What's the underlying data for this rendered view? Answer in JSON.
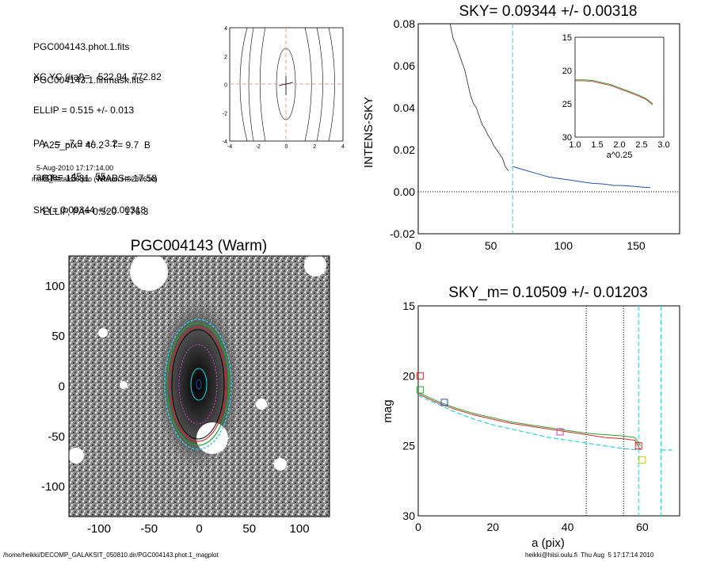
{
  "info": {
    "lines_a": [
      "PGC004143.phot.1.fits",
      "PGC004143.1.finmask.fits"
    ],
    "lines_b": [
      "XC,YC (iraf)=   522.94, 772.82",
      "ELLIP = 0.515 +/- 0.013",
      "PA    =  -7.9 +/-   3.2",
      "range=   45.-   55.",
      "SKY= 0.09344 +/- 0.00318"
    ],
    "lines_c": [
      "A25_pix= 46.2   T= 9.7  B",
      "BT=  15.31   MABS=-17.58",
      "ELLIP, PA= 0.520   176.3"
    ],
    "date_line": "5-Aug-2010 17:17:14.00",
    "program_line": "make_datalist0.pro (version HS230610)"
  },
  "footer": {
    "left": "/home/heikki/DECOMP_GALAKSIT_050810.dir/PGC004143.phot.1_magplot",
    "right": "heikki@hiisi.oulu.fi  Thu Aug  5 17:17:14 2010"
  },
  "colors": {
    "red": "#d62728",
    "green": "#2ca02c",
    "cyan": "#22d3e6",
    "blue": "#1f4fb5",
    "magenta": "#d23bd2",
    "pink": "#ef9a9a"
  },
  "chart_data": [
    {
      "id": "contour",
      "type": "contour",
      "xlim": [
        -4,
        4
      ],
      "ylim": [
        -4,
        4
      ],
      "x_ticks": [
        "-4",
        "-2",
        "0",
        "2",
        "4"
      ],
      "y_ticks": [
        "4",
        "2",
        "0",
        "-2",
        "-4"
      ]
    },
    {
      "id": "intens_sky",
      "type": "line",
      "title": "SKY= 0.09344 +/- 0.00318",
      "ylabel": "INTENS-SKY",
      "xlim": [
        0,
        180
      ],
      "ylim": [
        -0.02,
        0.08
      ],
      "x_ticks": [
        "0",
        "50",
        "100",
        "150"
      ],
      "y_ticks": [
        "0.08",
        "0.06",
        "0.04",
        "0.02",
        "0.00",
        "-0.02"
      ],
      "vline_x": 65,
      "inner": [
        [
          22,
          0.08
        ],
        [
          24,
          0.073
        ],
        [
          26,
          0.07
        ],
        [
          28,
          0.066
        ],
        [
          30,
          0.062
        ],
        [
          32,
          0.058
        ],
        [
          34,
          0.052
        ],
        [
          36,
          0.046
        ],
        [
          38,
          0.042
        ],
        [
          40,
          0.04
        ],
        [
          42,
          0.036
        ],
        [
          44,
          0.032
        ],
        [
          46,
          0.03
        ],
        [
          48,
          0.027
        ],
        [
          50,
          0.025
        ],
        [
          52,
          0.022
        ],
        [
          54,
          0.02
        ],
        [
          56,
          0.018
        ],
        [
          58,
          0.016
        ],
        [
          60,
          0.012
        ],
        [
          62,
          0.01
        ]
      ],
      "outer": [
        [
          65,
          0.012
        ],
        [
          70,
          0.011
        ],
        [
          75,
          0.01
        ],
        [
          80,
          0.009
        ],
        [
          85,
          0.008
        ],
        [
          90,
          0.007
        ],
        [
          95,
          0.0065
        ],
        [
          100,
          0.006
        ],
        [
          105,
          0.0055
        ],
        [
          110,
          0.005
        ],
        [
          115,
          0.0045
        ],
        [
          120,
          0.004
        ],
        [
          125,
          0.0038
        ],
        [
          130,
          0.0035
        ],
        [
          135,
          0.003
        ],
        [
          140,
          0.003
        ],
        [
          145,
          0.0028
        ],
        [
          150,
          0.0025
        ],
        [
          155,
          0.0022
        ],
        [
          160,
          0.002
        ]
      ],
      "inset": {
        "xlabel": "a^0.25",
        "xlim": [
          1.0,
          3.0
        ],
        "ylim": [
          15,
          30
        ],
        "x_ticks": [
          "1.0",
          "1.5",
          "2.0",
          "2.5",
          "3.0"
        ],
        "y_ticks": [
          "15",
          "20",
          "25",
          "30"
        ],
        "profile": [
          [
            1.0,
            21.4
          ],
          [
            1.2,
            21.4
          ],
          [
            1.4,
            21.5
          ],
          [
            1.6,
            21.8
          ],
          [
            1.8,
            22.1
          ],
          [
            2.0,
            22.6
          ],
          [
            2.2,
            23.1
          ],
          [
            2.4,
            23.6
          ],
          [
            2.6,
            24.2
          ],
          [
            2.75,
            25.0
          ]
        ]
      }
    },
    {
      "id": "image",
      "type": "image",
      "title": "PGC004143 (Warm)",
      "xlim": [
        -130,
        130
      ],
      "ylim": [
        -130,
        130
      ],
      "x_ticks": [
        "-100",
        "-50",
        "0",
        "50",
        "100"
      ],
      "y_ticks": [
        "100",
        "50",
        "0",
        "-50",
        "-100"
      ]
    },
    {
      "id": "mag_profile",
      "type": "line",
      "title": "SKY_m=  0.10509 +/- 0.01203",
      "xlabel": "a (pix)",
      "ylabel": "mag",
      "xlim": [
        0,
        70
      ],
      "ylim": [
        15,
        30
      ],
      "x_ticks": [
        "0",
        "20",
        "40",
        "60"
      ],
      "y_ticks": [
        "15",
        "20",
        "25",
        "30"
      ],
      "dotted_x": [
        45,
        55
      ],
      "dashed_x": [
        59,
        65
      ],
      "sky_level": 25.3,
      "series": [
        {
          "color": "#d62728",
          "values": [
            [
              0,
              21.3
            ],
            [
              5,
              21.9
            ],
            [
              10,
              22.4
            ],
            [
              15,
              22.8
            ],
            [
              20,
              23.1
            ],
            [
              25,
              23.4
            ],
            [
              30,
              23.6
            ],
            [
              35,
              23.8
            ],
            [
              40,
              24.0
            ],
            [
              45,
              24.2
            ],
            [
              50,
              24.4
            ],
            [
              55,
              24.5
            ],
            [
              58,
              24.6
            ],
            [
              59.5,
              25.3
            ]
          ]
        },
        {
          "color": "#2ca02c",
          "values": [
            [
              0,
              21.2
            ],
            [
              5,
              21.8
            ],
            [
              10,
              22.3
            ],
            [
              15,
              22.7
            ],
            [
              20,
              23.0
            ],
            [
              25,
              23.3
            ],
            [
              30,
              23.5
            ],
            [
              35,
              23.7
            ],
            [
              40,
              23.9
            ],
            [
              45,
              24.1
            ],
            [
              50,
              24.2
            ],
            [
              55,
              24.3
            ],
            [
              58,
              24.4
            ],
            [
              59.5,
              25.0
            ]
          ]
        },
        {
          "color": "#22d3e6",
          "values": [
            [
              0,
              21.4
            ],
            [
              5,
              22.0
            ],
            [
              10,
              22.6
            ],
            [
              15,
              23.1
            ],
            [
              20,
              23.5
            ],
            [
              25,
              23.8
            ],
            [
              30,
              24.1
            ],
            [
              35,
              24.4
            ],
            [
              40,
              24.6
            ],
            [
              45,
              24.8
            ],
            [
              50,
              25.0
            ],
            [
              55,
              25.2
            ],
            [
              59,
              25.3
            ]
          ]
        }
      ],
      "markers": [
        {
          "x": 0.5,
          "y": 20.0,
          "color": "#d62728"
        },
        {
          "x": 0.5,
          "y": 21.0,
          "color": "#2ca02c"
        },
        {
          "x": 7,
          "y": 21.9,
          "color": "#1f4fb5"
        },
        {
          "x": 38,
          "y": 24.0,
          "color": "#d23bd2"
        },
        {
          "x": 59,
          "y": 25.0,
          "color": "#d62728"
        },
        {
          "x": 60,
          "y": 26.0,
          "color": "#c8c800"
        }
      ]
    }
  ]
}
